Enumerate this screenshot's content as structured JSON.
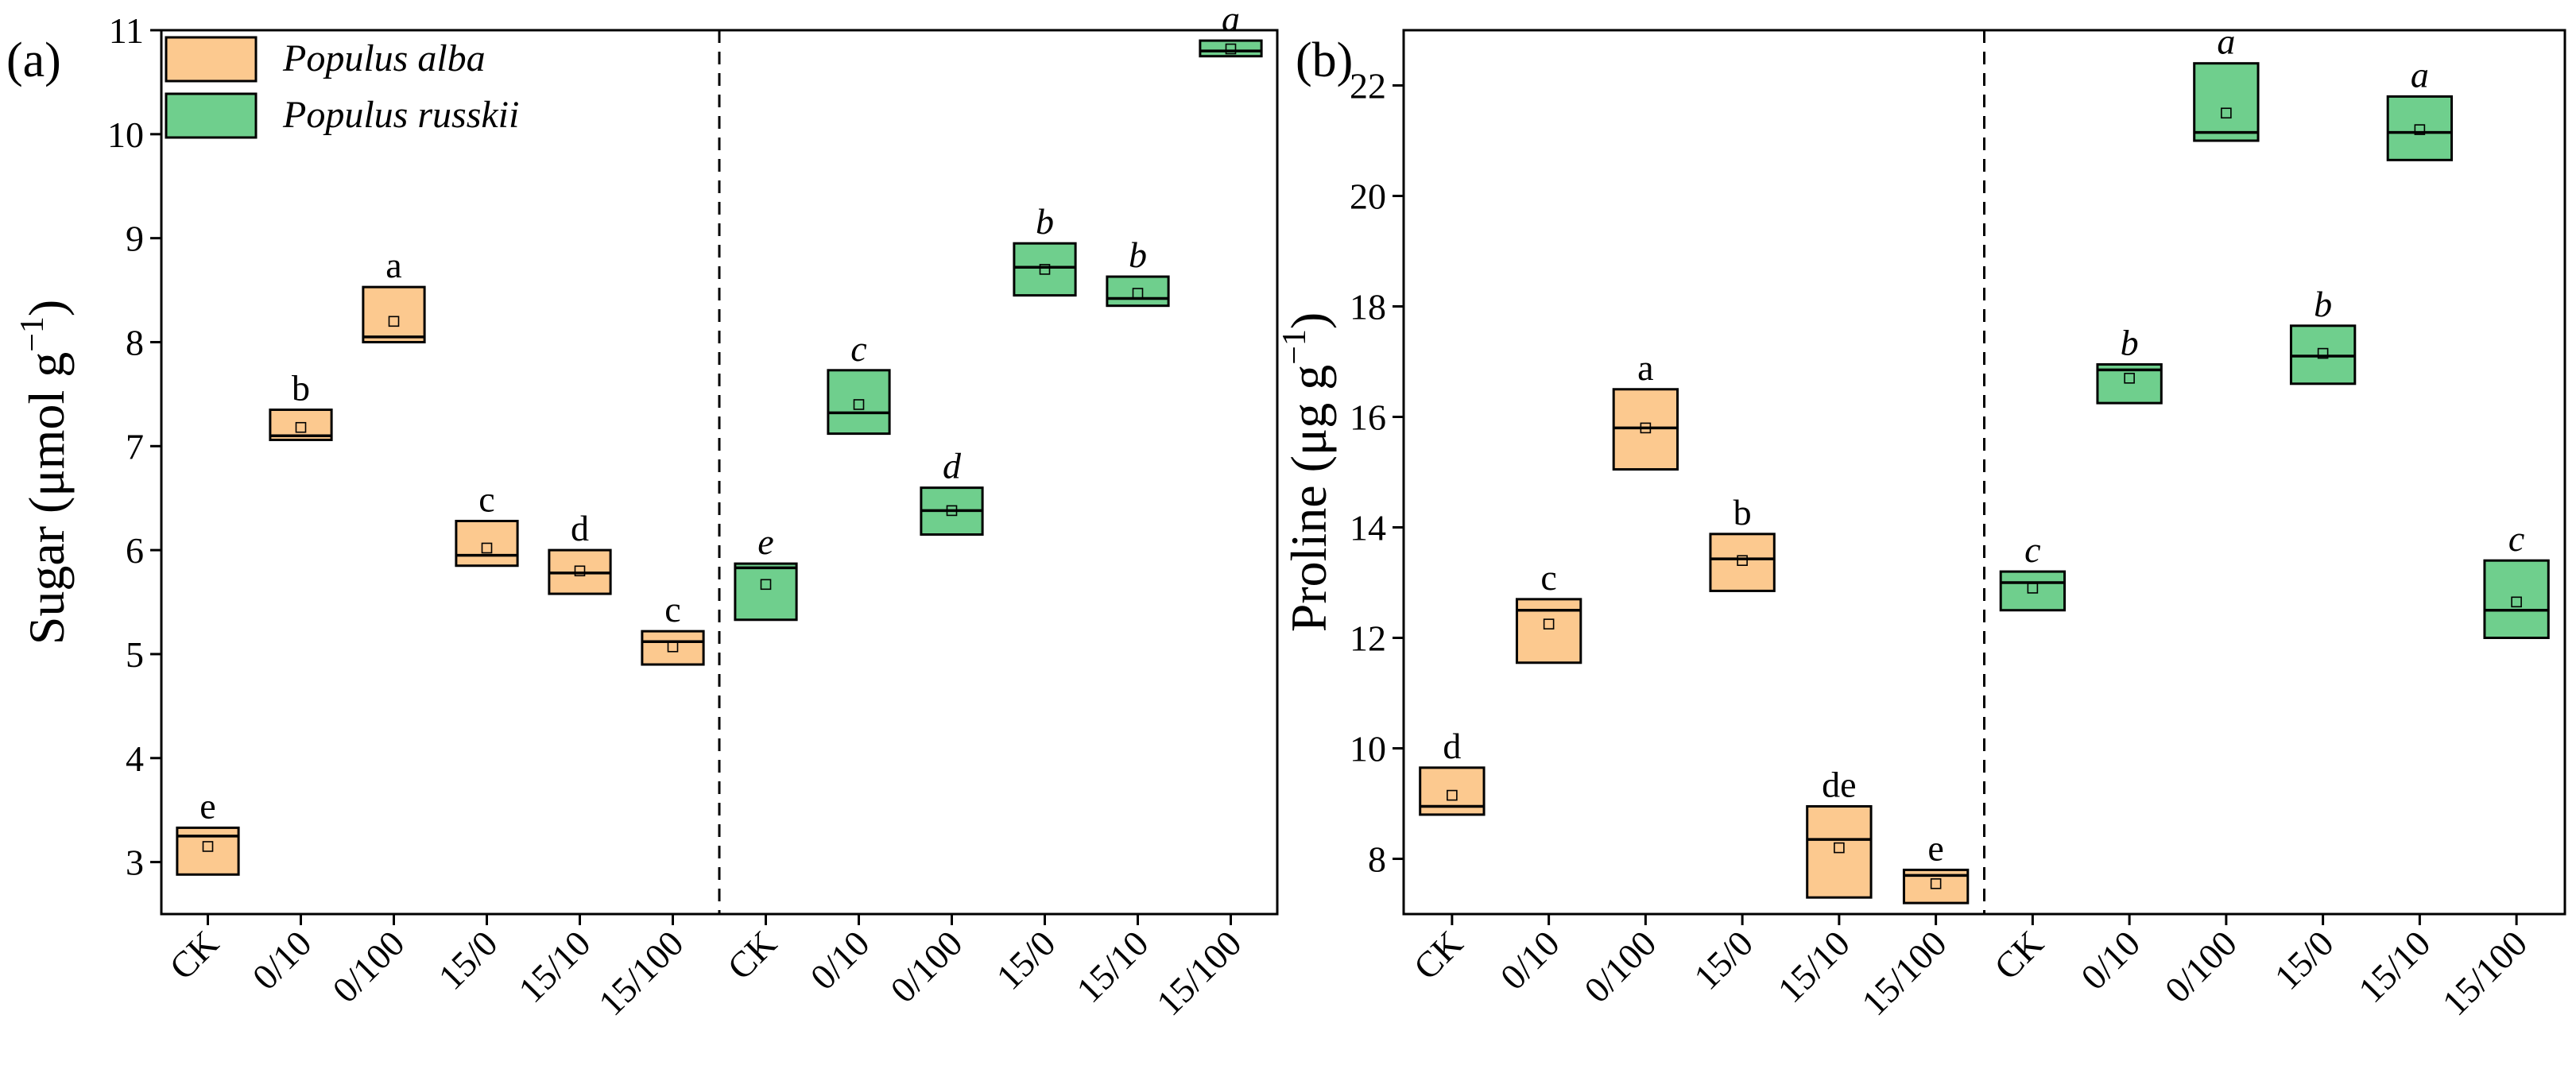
{
  "colors": {
    "alba_fill": "#FCC98F",
    "russkii_fill": "#6FCF8D",
    "frame": "#000000"
  },
  "legend": {
    "entries": [
      {
        "label": "Populus alba",
        "series": "alba"
      },
      {
        "label": "Populus russkii",
        "series": "russkii"
      }
    ]
  },
  "chart_data": [
    {
      "type": "box",
      "panel_label": "(a)",
      "ylabel_main": "Sugar (μmol g",
      "ylabel_sup": "−1",
      "ylabel_close": ")",
      "ylim": [
        2.5,
        11
      ],
      "yticks": [
        3,
        4,
        5,
        6,
        7,
        8,
        9,
        10,
        11
      ],
      "categories": [
        "CK",
        "0/10",
        "0/100",
        "15/0",
        "15/10",
        "15/100"
      ],
      "divider": "dashed vertical line between species groups",
      "series": [
        {
          "name": "Populus alba",
          "key": "alba",
          "italic_letters": false,
          "boxes": [
            {
              "q1": 2.88,
              "q3": 3.33,
              "median": 3.25,
              "mean": 3.15,
              "letter": "e"
            },
            {
              "q1": 7.06,
              "q3": 7.35,
              "median": 7.1,
              "mean": 7.18,
              "letter": "b"
            },
            {
              "q1": 8.0,
              "q3": 8.53,
              "median": 8.05,
              "mean": 8.2,
              "letter": "a"
            },
            {
              "q1": 5.85,
              "q3": 6.28,
              "median": 5.95,
              "mean": 6.02,
              "letter": "c"
            },
            {
              "q1": 5.58,
              "q3": 6.0,
              "median": 5.78,
              "mean": 5.8,
              "letter": "d"
            },
            {
              "q1": 4.9,
              "q3": 5.22,
              "median": 5.12,
              "mean": 5.07,
              "letter": "c"
            }
          ]
        },
        {
          "name": "Populus russkii",
          "key": "russkii",
          "italic_letters": true,
          "boxes": [
            {
              "q1": 5.33,
              "q3": 5.87,
              "median": 5.83,
              "mean": 5.67,
              "letter": "e"
            },
            {
              "q1": 7.12,
              "q3": 7.73,
              "median": 7.32,
              "mean": 7.4,
              "letter": "c"
            },
            {
              "q1": 6.15,
              "q3": 6.6,
              "median": 6.38,
              "mean": 6.38,
              "letter": "d"
            },
            {
              "q1": 8.45,
              "q3": 8.95,
              "median": 8.72,
              "mean": 8.7,
              "letter": "b"
            },
            {
              "q1": 8.35,
              "q3": 8.63,
              "median": 8.42,
              "mean": 8.47,
              "letter": "b"
            },
            {
              "q1": 10.75,
              "q3": 10.9,
              "median": 10.8,
              "mean": 10.82,
              "letter": "a"
            }
          ]
        }
      ]
    },
    {
      "type": "box",
      "panel_label": "(b)",
      "ylabel_main": "Proline (μg g",
      "ylabel_sup": "−1",
      "ylabel_close": ")",
      "ylim": [
        7,
        23
      ],
      "yticks": [
        8,
        10,
        12,
        14,
        16,
        18,
        20,
        22
      ],
      "categories": [
        "CK",
        "0/10",
        "0/100",
        "15/0",
        "15/10",
        "15/100"
      ],
      "divider": "dashed vertical line between species groups",
      "series": [
        {
          "name": "Populus alba",
          "key": "alba",
          "italic_letters": false,
          "boxes": [
            {
              "q1": 8.8,
              "q3": 9.65,
              "median": 8.95,
              "mean": 9.15,
              "letter": "d"
            },
            {
              "q1": 11.55,
              "q3": 12.7,
              "median": 12.5,
              "mean": 12.25,
              "letter": "c"
            },
            {
              "q1": 15.05,
              "q3": 16.5,
              "median": 15.8,
              "mean": 15.8,
              "letter": "a"
            },
            {
              "q1": 12.85,
              "q3": 13.88,
              "median": 13.43,
              "mean": 13.4,
              "letter": "b"
            },
            {
              "q1": 7.3,
              "q3": 8.95,
              "median": 8.35,
              "mean": 8.2,
              "letter": "de"
            },
            {
              "q1": 7.2,
              "q3": 7.8,
              "median": 7.7,
              "mean": 7.55,
              "letter": "e"
            }
          ]
        },
        {
          "name": "Populus russkii",
          "key": "russkii",
          "italic_letters": true,
          "boxes": [
            {
              "q1": 12.5,
              "q3": 13.2,
              "median": 13.0,
              "mean": 12.9,
              "letter": "c"
            },
            {
              "q1": 16.25,
              "q3": 16.95,
              "median": 16.85,
              "mean": 16.7,
              "letter": "b"
            },
            {
              "q1": 21.0,
              "q3": 22.4,
              "median": 21.15,
              "mean": 21.5,
              "letter": "a"
            },
            {
              "q1": 16.6,
              "q3": 17.65,
              "median": 17.1,
              "mean": 17.15,
              "letter": "b"
            },
            {
              "q1": 20.65,
              "q3": 21.8,
              "median": 21.15,
              "mean": 21.2,
              "letter": "a"
            },
            {
              "q1": 12.0,
              "q3": 13.4,
              "median": 12.5,
              "mean": 12.65,
              "letter": "c"
            }
          ]
        }
      ]
    }
  ]
}
